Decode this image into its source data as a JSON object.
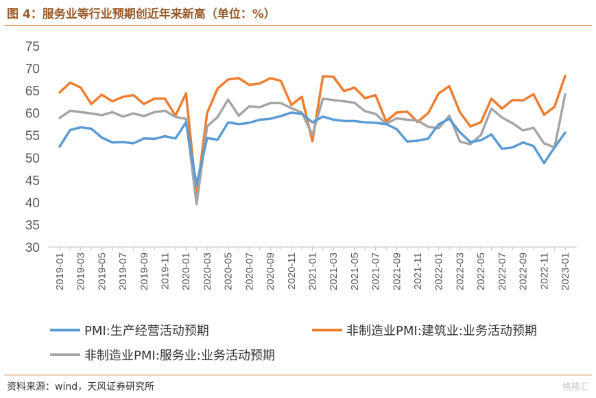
{
  "header": {
    "title": "图 4：服务业等行业预期创近年来新高（单位：%）"
  },
  "footer": {
    "source": "资料来源：wind，天风证券研究所",
    "watermark": "格隆汇"
  },
  "colors": {
    "series1": "#5b9bd5",
    "series2": "#ed7d31",
    "series3": "#a5a5a5",
    "accent_rule": "#e07a2a"
  },
  "chart_data": {
    "type": "line",
    "title": "图 4：服务业等行业预期创近年来新高（单位：%）",
    "ylim": [
      30,
      75
    ],
    "yticks": [
      30,
      35,
      40,
      45,
      50,
      55,
      60,
      65,
      70,
      75
    ],
    "grid": false,
    "legend": "bottom",
    "x": [
      "2019-01",
      "2019-02",
      "2019-03",
      "2019-04",
      "2019-05",
      "2019-06",
      "2019-07",
      "2019-08",
      "2019-09",
      "2019-10",
      "2019-11",
      "2019-12",
      "2020-01",
      "2020-02",
      "2020-03",
      "2020-04",
      "2020-05",
      "2020-06",
      "2020-07",
      "2020-08",
      "2020-09",
      "2020-10",
      "2020-11",
      "2020-12",
      "2021-01",
      "2021-02",
      "2021-03",
      "2021-04",
      "2021-05",
      "2021-06",
      "2021-07",
      "2021-08",
      "2021-09",
      "2021-10",
      "2021-11",
      "2021-12",
      "2022-01",
      "2022-02",
      "2022-03",
      "2022-04",
      "2022-05",
      "2022-06",
      "2022-07",
      "2022-08",
      "2022-09",
      "2022-10",
      "2022-11",
      "2022-12",
      "2023-01"
    ],
    "xtick_labels": [
      "2019-01",
      "2019-03",
      "2019-05",
      "2019-07",
      "2019-09",
      "2019-11",
      "2020-01",
      "2020-03",
      "2020-05",
      "2020-07",
      "2020-09",
      "2020-11",
      "2021-01",
      "2021-03",
      "2021-05",
      "2021-07",
      "2021-09",
      "2021-11",
      "2022-01",
      "2022-03",
      "2022-05",
      "2022-07",
      "2022-09",
      "2022-11",
      "2023-01"
    ],
    "series": [
      {
        "name": "PMI:生产经营活动预期",
        "values": [
          52.5,
          56.2,
          56.8,
          56.5,
          54.5,
          53.4,
          53.5,
          53.2,
          54.3,
          54.2,
          54.8,
          54.3,
          57.9,
          44.0,
          54.4,
          54.0,
          57.9,
          57.5,
          57.8,
          58.5,
          58.7,
          59.3,
          60.1,
          59.8,
          57.9,
          59.2,
          58.5,
          58.2,
          58.2,
          57.9,
          57.8,
          57.5,
          56.4,
          53.6,
          53.8,
          54.3,
          57.5,
          58.7,
          55.7,
          53.5,
          53.9,
          55.2,
          52.0,
          52.3,
          53.4,
          52.6,
          48.8,
          52.3,
          55.6
        ]
      },
      {
        "name": "非制造业PMI:建筑业:业务活动预期",
        "values": [
          64.6,
          66.8,
          65.7,
          62.0,
          64.1,
          62.6,
          63.6,
          64.0,
          62.0,
          63.2,
          63.2,
          59.4,
          64.4,
          41.6,
          60.0,
          65.5,
          67.5,
          67.8,
          66.3,
          66.6,
          67.8,
          67.2,
          61.8,
          63.6,
          53.7,
          68.2,
          68.1,
          64.9,
          65.7,
          63.3,
          64.0,
          58.1,
          60.1,
          60.3,
          58.0,
          60.0,
          64.4,
          66.0,
          60.2,
          57.0,
          57.9,
          63.2,
          61.0,
          62.9,
          62.8,
          64.2,
          59.6,
          61.4,
          68.3
        ]
      },
      {
        "name": "非制造业PMI:服务业:业务活动预期",
        "values": [
          58.9,
          60.5,
          60.2,
          59.9,
          59.5,
          60.2,
          59.2,
          59.9,
          59.3,
          60.2,
          60.5,
          59.1,
          58.7,
          39.6,
          57.0,
          59.1,
          63.0,
          59.4,
          61.5,
          61.3,
          62.2,
          62.2,
          61.1,
          60.1,
          55.1,
          63.2,
          62.9,
          62.6,
          62.3,
          60.4,
          59.8,
          57.6,
          58.8,
          58.5,
          58.3,
          56.9,
          56.6,
          59.4,
          53.6,
          53.0,
          55.1,
          61.0,
          59.0,
          57.7,
          56.1,
          56.7,
          53.2,
          52.3,
          64.2
        ]
      }
    ]
  }
}
